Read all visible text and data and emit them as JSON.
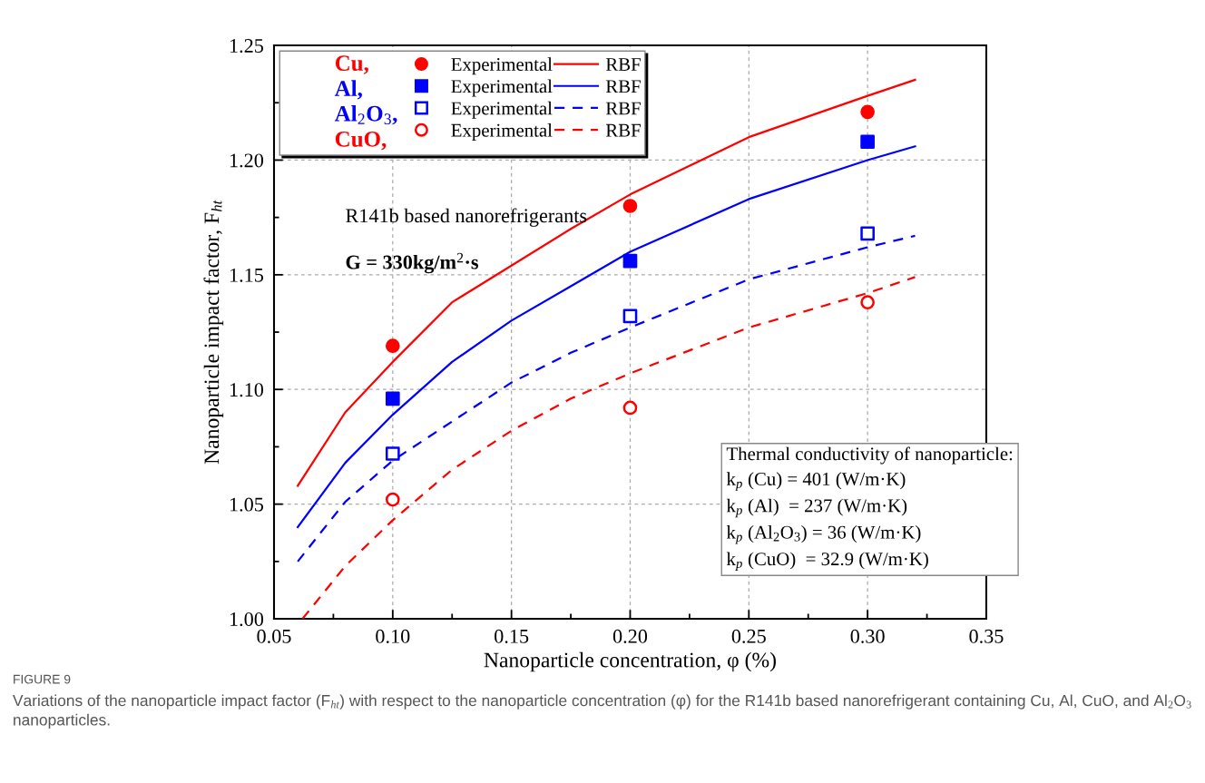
{
  "chart_data": {
    "type": "scatter",
    "xlabel": "Nanoparticle concentration, φ (%)",
    "ylabel": "Nanoparticle impact factor, F$_{ht}$",
    "xlim": [
      0.05,
      0.35
    ],
    "xticks": [
      {
        "value": 0.05,
        "label": "0.05"
      },
      {
        "value": 0.1,
        "label": "0.10"
      },
      {
        "value": 0.15,
        "label": "0.15"
      },
      {
        "value": 0.2,
        "label": "0.20"
      },
      {
        "value": 0.25,
        "label": "0.25"
      },
      {
        "value": 0.3,
        "label": "0.30"
      },
      {
        "value": 0.35,
        "label": "0.35"
      }
    ],
    "ylim": [
      1.0,
      1.25
    ],
    "yticks": [
      {
        "value": 1.0,
        "label": "1.00"
      },
      {
        "value": 1.05,
        "label": "1.05"
      },
      {
        "value": 1.1,
        "label": "1.10"
      },
      {
        "value": 1.15,
        "label": "1.15"
      },
      {
        "value": 1.2,
        "label": "1.20"
      },
      {
        "value": 1.25,
        "label": "1.25"
      }
    ],
    "grid": true,
    "legend": "top left",
    "series": [
      {
        "name": "Experimental",
        "color": "#ff0000",
        "marker": "circle",
        "x": [
          0.1,
          0.2,
          0.3
        ],
        "values": [
          1.119,
          1.18,
          1.221
        ]
      },
      {
        "name": "RBF",
        "type": "line",
        "color": "#ff0000",
        "line_style": "solid",
        "x": [
          0.06,
          0.08,
          0.1,
          0.125,
          0.15,
          0.175,
          0.2,
          0.25,
          0.3,
          0.32
        ],
        "values": [
          1.058,
          1.09,
          1.112,
          1.138,
          1.154,
          1.17,
          1.185,
          1.21,
          1.228,
          1.235
        ]
      },
      {
        "name": "Experimental",
        "color": "#0000ff",
        "marker": "square",
        "x": [
          0.1,
          0.2,
          0.3
        ],
        "values": [
          1.096,
          1.156,
          1.208
        ]
      },
      {
        "name": "RBF",
        "type": "line",
        "color": "#0000ff",
        "line_style": "solid",
        "x": [
          0.06,
          0.08,
          0.1,
          0.125,
          0.15,
          0.175,
          0.2,
          0.25,
          0.3,
          0.32
        ],
        "values": [
          1.04,
          1.068,
          1.089,
          1.112,
          1.13,
          1.145,
          1.16,
          1.183,
          1.2,
          1.206
        ]
      },
      {
        "name": "Experimental",
        "color": "#0000ff",
        "marker": "square-open",
        "x": [
          0.1,
          0.2,
          0.3
        ],
        "values": [
          1.072,
          1.132,
          1.168
        ]
      },
      {
        "name": "RBF",
        "type": "line",
        "color": "#0000ff",
        "line_style": "dashed",
        "x": [
          0.06,
          0.08,
          0.1,
          0.125,
          0.15,
          0.175,
          0.2,
          0.25,
          0.3,
          0.32
        ],
        "values": [
          1.025,
          1.051,
          1.069,
          1.086,
          1.103,
          1.116,
          1.127,
          1.148,
          1.162,
          1.167
        ]
      },
      {
        "name": "Experimental",
        "color": "#ff0000",
        "marker": "circle-open",
        "x": [
          0.1,
          0.2,
          0.3
        ],
        "values": [
          1.052,
          1.092,
          1.138
        ]
      },
      {
        "name": "RBF",
        "type": "line",
        "color": "#ff0000",
        "line_style": "dashed",
        "x": [
          0.062,
          0.08,
          0.1,
          0.125,
          0.15,
          0.175,
          0.2,
          0.25,
          0.3,
          0.32
        ],
        "values": [
          1.0,
          1.023,
          1.043,
          1.065,
          1.082,
          1.096,
          1.107,
          1.127,
          1.142,
          1.149
        ]
      }
    ],
    "annotations": [
      "R141b based nanorefrigerants",
      "G = 330kg/m$^{2}$·s",
      "Thermal conductivity of nanoparticle:\nk$_{p}$ (Cu) = 401 (W/m·K)\nk$_{p}$ (Al)  = 237 (W/m·K)\nk$_{p}$ (Al$_{2}$O$_{3}$) = 36 (W/m·K)\nk$_{p}$ (CuO)  = 32.9 (W/m·K)",
      "FIGURE 9",
      "Variations of the nanoparticle impact factor (F$_{ht}$) with respect to the nanoparticle concentration (φ) for the R141b based nanorefrigerant containing Cu, Al, CuO, and Al$_{2}$O$_{3}$ nanoparticles.",
      "Cu,",
      "Al,",
      "Al$_{2}$O$_{3}$,",
      "CuO,"
    ]
  }
}
